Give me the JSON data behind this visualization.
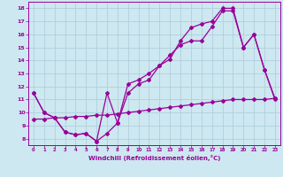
{
  "xlabel": "Windchill (Refroidissement éolien,°C)",
  "bg_color": "#cde8f0",
  "grid_color": "#b0d0dc",
  "line_color": "#990099",
  "spine_color": "#7777aa",
  "xlim": [
    -0.5,
    23.5
  ],
  "ylim": [
    7.5,
    18.5
  ],
  "xticks": [
    0,
    1,
    2,
    3,
    4,
    5,
    6,
    7,
    8,
    9,
    10,
    11,
    12,
    13,
    14,
    15,
    16,
    17,
    18,
    19,
    20,
    21,
    22,
    23
  ],
  "yticks": [
    8,
    9,
    10,
    11,
    12,
    13,
    14,
    15,
    16,
    17,
    18
  ],
  "line1_x": [
    0,
    1,
    2,
    3,
    4,
    5,
    6,
    7,
    8,
    9,
    10,
    11,
    12,
    13,
    14,
    15,
    16,
    17,
    18,
    19,
    20,
    21,
    22,
    23
  ],
  "line1_y": [
    11.5,
    10.0,
    9.6,
    8.5,
    8.3,
    8.4,
    7.8,
    8.4,
    9.2,
    11.5,
    12.2,
    12.5,
    13.6,
    14.1,
    15.5,
    16.5,
    16.8,
    17.0,
    18.0,
    18.0,
    15.0,
    16.0,
    13.3,
    11.0
  ],
  "line2_x": [
    0,
    1,
    2,
    3,
    4,
    5,
    6,
    7,
    8,
    9,
    10,
    11,
    12,
    13,
    14,
    15,
    16,
    17,
    18,
    19,
    20,
    21,
    22,
    23
  ],
  "line2_y": [
    11.5,
    10.0,
    9.6,
    8.5,
    8.3,
    8.4,
    7.8,
    11.5,
    9.2,
    12.2,
    12.5,
    13.0,
    13.6,
    14.4,
    15.2,
    15.5,
    15.5,
    16.6,
    17.8,
    17.8,
    15.0,
    16.0,
    13.3,
    11.1
  ],
  "line3_x": [
    0,
    1,
    2,
    3,
    4,
    5,
    6,
    7,
    8,
    9,
    10,
    11,
    12,
    13,
    14,
    15,
    16,
    17,
    18,
    19,
    20,
    21,
    22,
    23
  ],
  "line3_y": [
    9.5,
    9.5,
    9.6,
    9.6,
    9.7,
    9.7,
    9.8,
    9.8,
    9.9,
    10.0,
    10.1,
    10.2,
    10.3,
    10.4,
    10.5,
    10.6,
    10.7,
    10.8,
    10.9,
    11.0,
    11.0,
    11.0,
    11.0,
    11.1
  ],
  "marker": "D",
  "markersize": 2,
  "linewidth": 0.9
}
